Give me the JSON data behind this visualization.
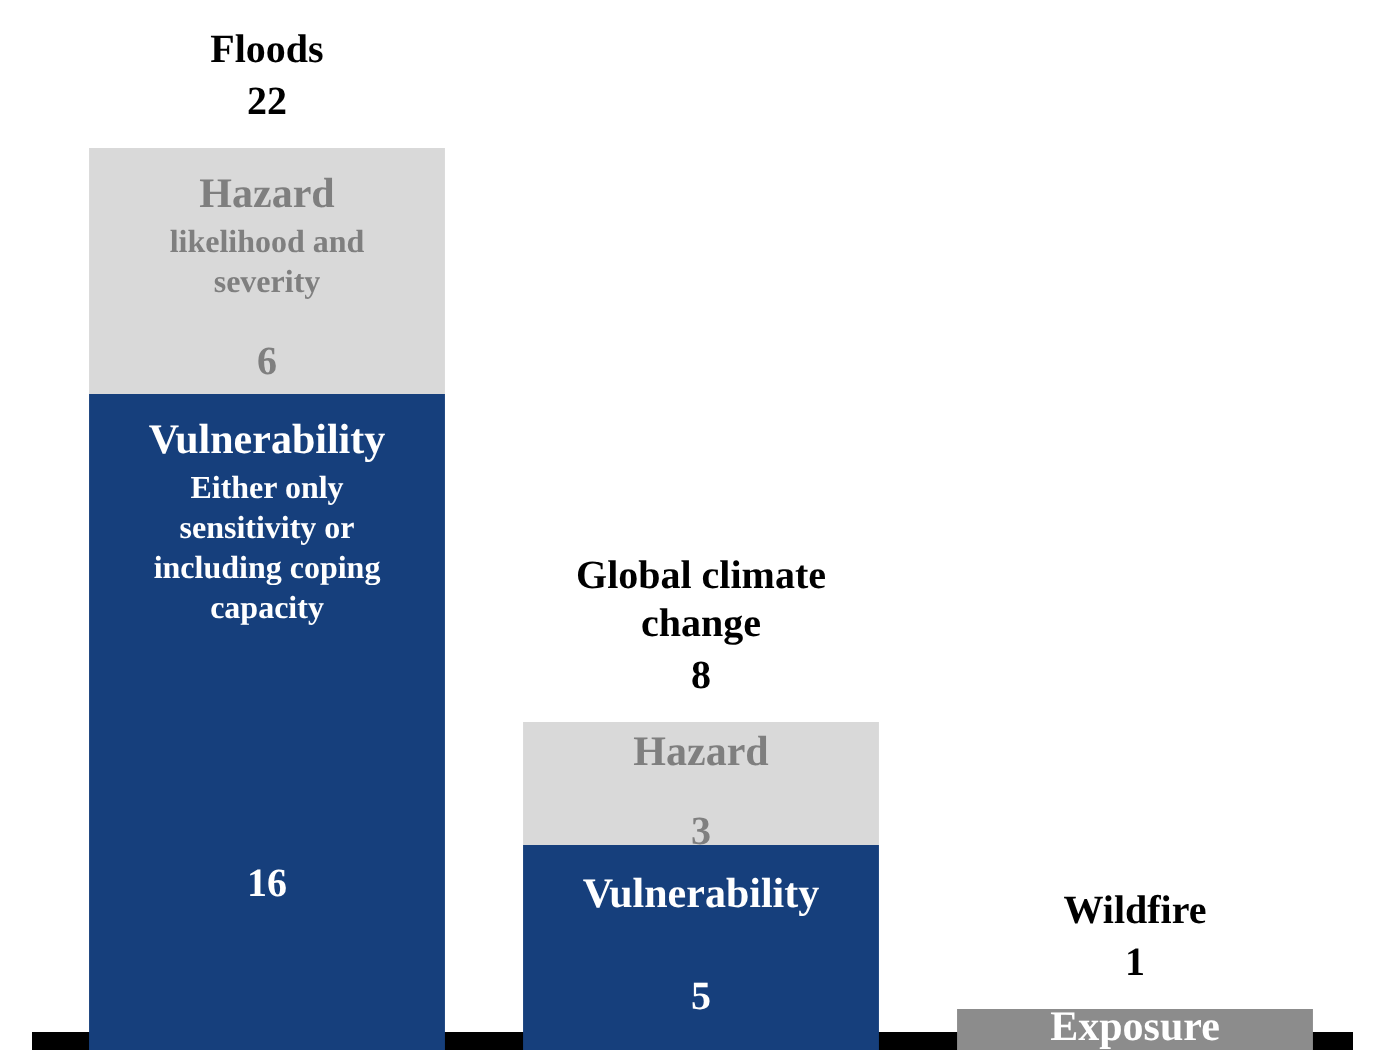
{
  "chart_data": {
    "type": "bar",
    "stacked": true,
    "categories": [
      "Floods",
      "Global climate change",
      "Wildfire"
    ],
    "series": [
      {
        "name": "Vulnerability",
        "color": "#163f7c",
        "values": [
          16,
          5,
          null
        ],
        "value_labels": [
          "16",
          "5",
          null
        ]
      },
      {
        "name": "Hazard",
        "color": "#d9d9d9",
        "values": [
          6,
          3,
          null
        ],
        "value_labels": [
          "6",
          "3",
          null
        ]
      },
      {
        "name": "Exposure",
        "color": "#8c8c8c",
        "values": [
          null,
          null,
          1
        ]
      }
    ],
    "totals": [
      "22",
      "8",
      "1"
    ],
    "annotations": [
      "likelihood and severity",
      "Either only sensitivity or including coping capacity"
    ]
  }
}
